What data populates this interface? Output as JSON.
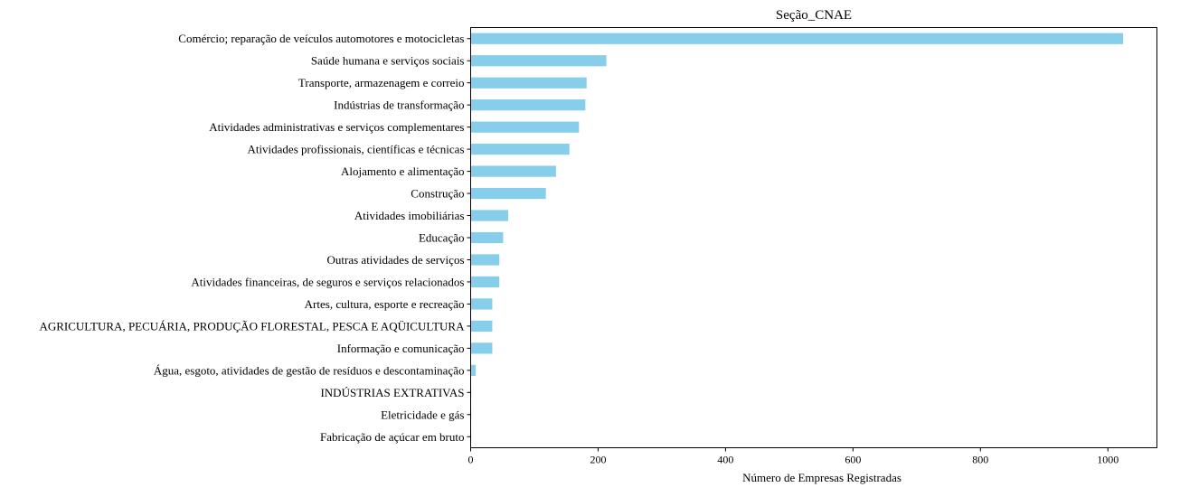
{
  "chart_data": {
    "type": "bar",
    "orientation": "horizontal",
    "title": "Seção_CNAE",
    "xlabel": "Número de Empresas Registradas",
    "ylabel": "",
    "xlim": [
      0,
      1077
    ],
    "xticks": [
      0,
      200,
      400,
      600,
      800,
      1000
    ],
    "xtick_labels": [
      "0",
      "200",
      "400",
      "600",
      "800",
      "1000"
    ],
    "bar_color": "#87CEEB",
    "grid": false,
    "categories": [
      "Comércio; reparação de veículos automotores e motocicletas",
      "Saúde humana e serviços sociais",
      "Transporte, armazenagem e correio",
      "Indústrias de transformação",
      "Atividades administrativas e serviços complementares",
      "Atividades profissionais, científicas e técnicas",
      "Alojamento e alimentação",
      "Construção",
      "Atividades imobiliárias",
      "Educação",
      "Outras atividades de serviços",
      "Atividades financeiras, de seguros e serviços relacionados",
      "Artes, cultura, esporte e recreação",
      "AGRICULTURA, PECUÁRIA, PRODUÇÃO FLORESTAL, PESCA E AQÜICULTURA",
      "Informação e comunicação",
      "Água, esgoto, atividades de gestão de resíduos e descontaminação",
      "INDÚSTRIAS EXTRATIVAS",
      "Eletricidade e gás",
      "Fabricação de açúcar em bruto"
    ],
    "values": [
      1024,
      213,
      182,
      180,
      170,
      155,
      134,
      118,
      59,
      51,
      45,
      45,
      34,
      34,
      34,
      8,
      1,
      1,
      1
    ]
  }
}
